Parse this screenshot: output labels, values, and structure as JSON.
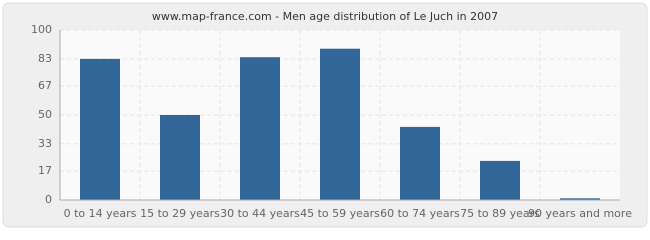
{
  "chart_data": {
    "type": "bar",
    "title": "www.map-france.com - Men age distribution of Le Juch in 2007",
    "categories": [
      "0 to 14 years",
      "15 to 29 years",
      "30 to 44 years",
      "45 to 59 years",
      "60 to 74 years",
      "75 to 89 years",
      "90 years and more"
    ],
    "values": [
      83,
      50,
      84,
      89,
      43,
      23,
      1
    ],
    "color": "#336699",
    "ylim": [
      0,
      100
    ],
    "yticks": [
      0,
      17,
      33,
      50,
      67,
      83,
      100
    ],
    "grid": true
  }
}
